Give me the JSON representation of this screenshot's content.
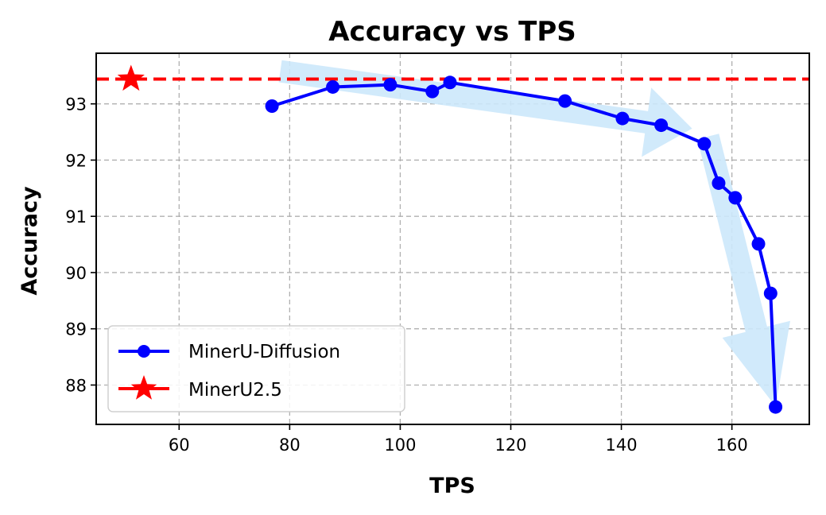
{
  "chart_data": {
    "type": "line",
    "title": "Accuracy vs TPS",
    "xlabel": "TPS",
    "ylabel": "Accuracy",
    "xlim": [
      45,
      174
    ],
    "ylim": [
      87.3,
      93.9
    ],
    "xticks": [
      60,
      80,
      100,
      120,
      140,
      160
    ],
    "yticks": [
      88,
      89,
      90,
      91,
      92,
      93
    ],
    "grid": true,
    "legend_position": "lower-left",
    "series": [
      {
        "name": "MinerU-Diffusion",
        "color": "#0000ff",
        "marker": "circle",
        "x": [
          76.8,
          87.8,
          98.2,
          105.8,
          109.0,
          129.8,
          140.2,
          147.2,
          155.0,
          157.6,
          160.6,
          164.8,
          167.0,
          167.9
        ],
        "y": [
          92.96,
          93.3,
          93.34,
          93.22,
          93.38,
          93.05,
          92.74,
          92.62,
          92.29,
          91.59,
          91.33,
          90.51,
          89.63,
          87.61
        ]
      },
      {
        "name": "MinerU2.5",
        "color": "#ff0000",
        "marker": "star",
        "line_style": "dashed-horizontal",
        "x": [
          51.3
        ],
        "y": [
          93.44
        ]
      }
    ],
    "trend_arrows_color": "#cce8fb"
  }
}
